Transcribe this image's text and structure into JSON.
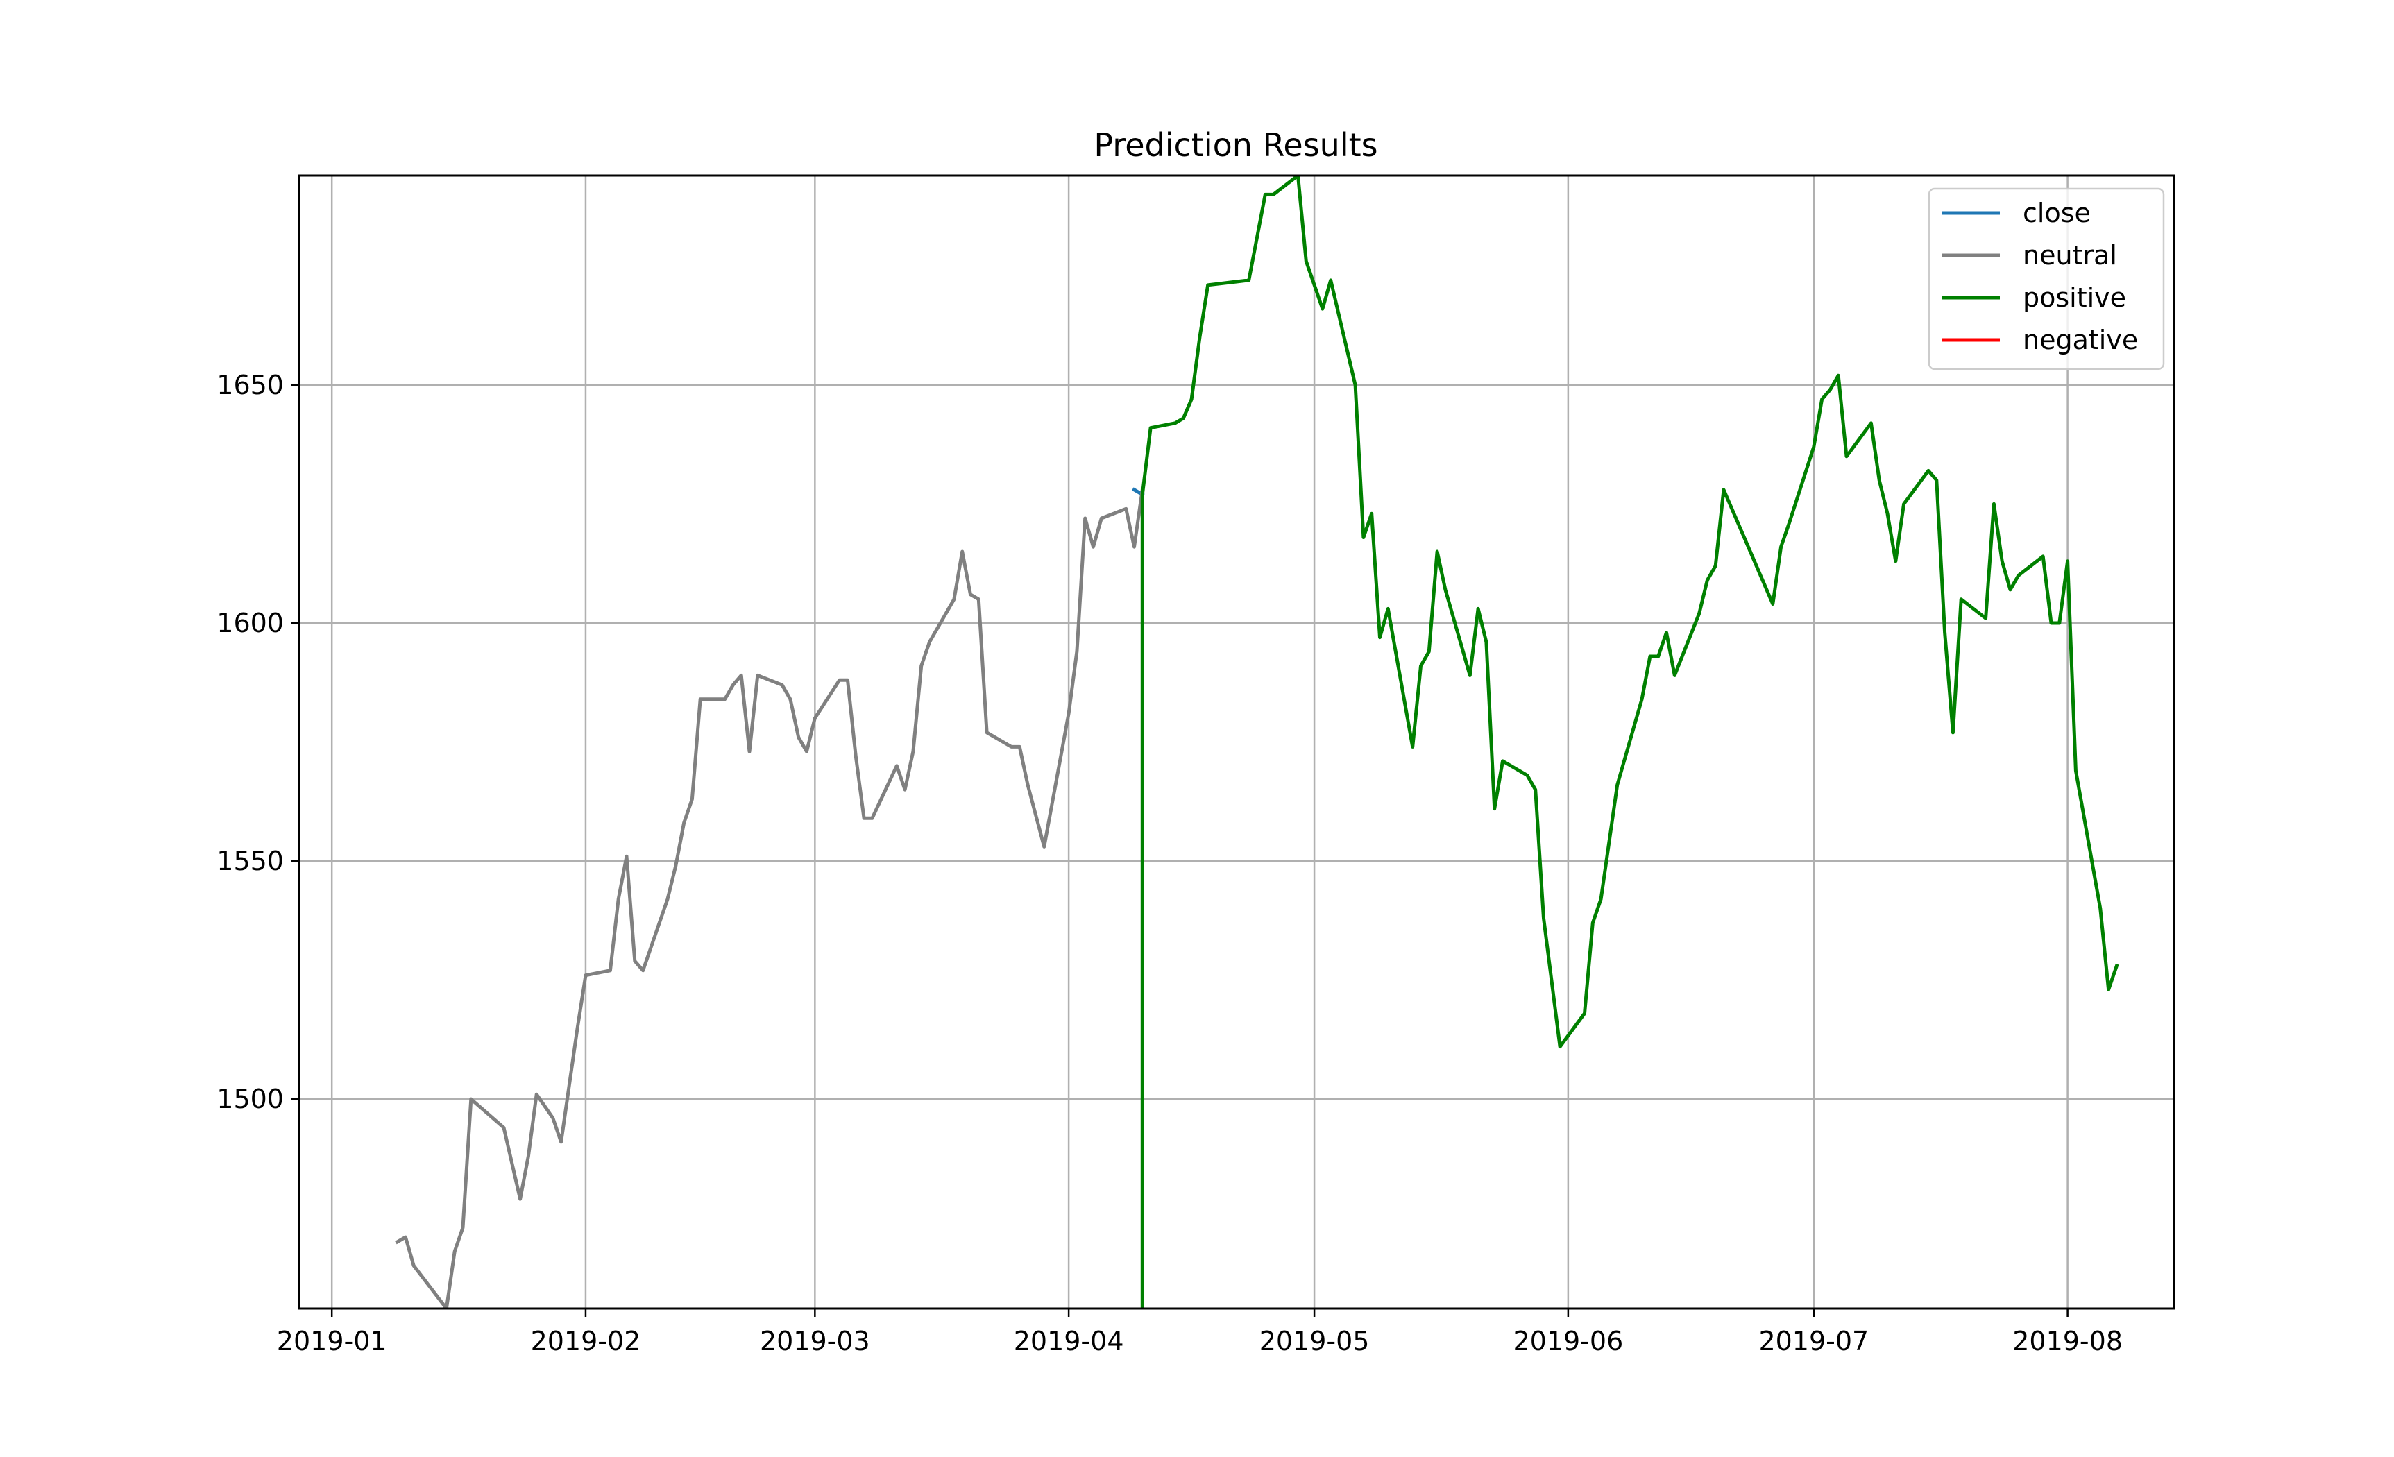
{
  "chart_data": {
    "type": "line",
    "title": "Prediction Results",
    "xlabel": "",
    "ylabel": "",
    "x_axis_type": "date",
    "xlim": [
      "2018-12-28",
      "2019-08-14"
    ],
    "ylim": [
      1456,
      1694
    ],
    "x_ticks": [
      "2019-01-01",
      "2019-02-01",
      "2019-03-01",
      "2019-04-01",
      "2019-05-01",
      "2019-06-01",
      "2019-07-01",
      "2019-08-01"
    ],
    "x_tick_labels": [
      "2019-01",
      "2019-02",
      "2019-03",
      "2019-04",
      "2019-05",
      "2019-06",
      "2019-07",
      "2019-08"
    ],
    "y_ticks": [
      1500,
      1550,
      1600,
      1650
    ],
    "y_tick_labels": [
      "1500",
      "1550",
      "1600",
      "1650"
    ],
    "grid": true,
    "legend_position": "top-right",
    "series": [
      {
        "name": "close",
        "color": "#1f77b4",
        "points": [
          [
            "2019-04-09",
            1628
          ],
          [
            "2019-04-10",
            1627
          ]
        ]
      },
      {
        "name": "neutral",
        "color": "#808080",
        "points": [
          [
            "2019-01-09",
            1470
          ],
          [
            "2019-01-10",
            1471
          ],
          [
            "2019-01-11",
            1465
          ],
          [
            "2019-01-15",
            1456
          ],
          [
            "2019-01-16",
            1468
          ],
          [
            "2019-01-17",
            1473
          ],
          [
            "2019-01-18",
            1500
          ],
          [
            "2019-01-22",
            1494
          ],
          [
            "2019-01-24",
            1479
          ],
          [
            "2019-01-25",
            1488
          ],
          [
            "2019-01-26",
            1501
          ],
          [
            "2019-01-28",
            1496
          ],
          [
            "2019-01-29",
            1491
          ],
          [
            "2019-01-30",
            1503
          ],
          [
            "2019-01-31",
            1515
          ],
          [
            "2019-02-01",
            1526
          ],
          [
            "2019-02-04",
            1527
          ],
          [
            "2019-02-05",
            1542
          ],
          [
            "2019-02-06",
            1551
          ],
          [
            "2019-02-07",
            1529
          ],
          [
            "2019-02-08",
            1527
          ],
          [
            "2019-02-11",
            1542
          ],
          [
            "2019-02-12",
            1549
          ],
          [
            "2019-02-13",
            1558
          ],
          [
            "2019-02-14",
            1563
          ],
          [
            "2019-02-15",
            1584
          ],
          [
            "2019-02-18",
            1584
          ],
          [
            "2019-02-19",
            1587
          ],
          [
            "2019-02-20",
            1589
          ],
          [
            "2019-02-21",
            1573
          ],
          [
            "2019-02-22",
            1589
          ],
          [
            "2019-02-25",
            1587
          ],
          [
            "2019-02-26",
            1584
          ],
          [
            "2019-02-27",
            1576
          ],
          [
            "2019-02-28",
            1573
          ],
          [
            "2019-03-01",
            1580
          ],
          [
            "2019-03-04",
            1588
          ],
          [
            "2019-03-05",
            1588
          ],
          [
            "2019-03-06",
            1572
          ],
          [
            "2019-03-07",
            1559
          ],
          [
            "2019-03-08",
            1559
          ],
          [
            "2019-03-11",
            1570
          ],
          [
            "2019-03-12",
            1565
          ],
          [
            "2019-03-13",
            1573
          ],
          [
            "2019-03-14",
            1591
          ],
          [
            "2019-03-15",
            1596
          ],
          [
            "2019-03-18",
            1605
          ],
          [
            "2019-03-19",
            1615
          ],
          [
            "2019-03-20",
            1606
          ],
          [
            "2019-03-21",
            1605
          ],
          [
            "2019-03-22",
            1577
          ],
          [
            "2019-03-25",
            1574
          ],
          [
            "2019-03-26",
            1574
          ],
          [
            "2019-03-27",
            1566
          ],
          [
            "2019-03-29",
            1553
          ],
          [
            "2019-04-01",
            1581
          ],
          [
            "2019-04-02",
            1594
          ],
          [
            "2019-04-03",
            1622
          ],
          [
            "2019-04-04",
            1616
          ],
          [
            "2019-04-05",
            1622
          ],
          [
            "2019-04-08",
            1624
          ],
          [
            "2019-04-09",
            1616
          ],
          [
            "2019-04-10",
            1628
          ]
        ]
      },
      {
        "name": "positive",
        "color": "#008000",
        "points": [
          [
            "2019-04-10",
            1456
          ],
          [
            "2019-04-10",
            1627
          ],
          [
            "2019-04-11",
            1641
          ],
          [
            "2019-04-14",
            1642
          ],
          [
            "2019-04-15",
            1643
          ],
          [
            "2019-04-16",
            1647
          ],
          [
            "2019-04-17",
            1660
          ],
          [
            "2019-04-18",
            1671
          ],
          [
            "2019-04-23",
            1672
          ],
          [
            "2019-04-25",
            1690
          ],
          [
            "2019-04-26",
            1690
          ],
          [
            "2019-04-29",
            1694
          ],
          [
            "2019-04-30",
            1676
          ],
          [
            "2019-05-02",
            1666
          ],
          [
            "2019-05-03",
            1672
          ],
          [
            "2019-05-06",
            1650
          ],
          [
            "2019-05-07",
            1618
          ],
          [
            "2019-05-08",
            1623
          ],
          [
            "2019-05-09",
            1597
          ],
          [
            "2019-05-10",
            1603
          ],
          [
            "2019-05-13",
            1574
          ],
          [
            "2019-05-14",
            1591
          ],
          [
            "2019-05-15",
            1594
          ],
          [
            "2019-05-16",
            1615
          ],
          [
            "2019-05-17",
            1607
          ],
          [
            "2019-05-20",
            1589
          ],
          [
            "2019-05-21",
            1603
          ],
          [
            "2019-05-22",
            1596
          ],
          [
            "2019-05-23",
            1561
          ],
          [
            "2019-05-24",
            1571
          ],
          [
            "2019-05-27",
            1568
          ],
          [
            "2019-05-28",
            1565
          ],
          [
            "2019-05-29",
            1538
          ],
          [
            "2019-05-31",
            1511
          ],
          [
            "2019-06-03",
            1518
          ],
          [
            "2019-06-04",
            1537
          ],
          [
            "2019-06-05",
            1542
          ],
          [
            "2019-06-07",
            1566
          ],
          [
            "2019-06-10",
            1584
          ],
          [
            "2019-06-11",
            1593
          ],
          [
            "2019-06-12",
            1593
          ],
          [
            "2019-06-13",
            1598
          ],
          [
            "2019-06-14",
            1589
          ],
          [
            "2019-06-17",
            1602
          ],
          [
            "2019-06-18",
            1609
          ],
          [
            "2019-06-19",
            1612
          ],
          [
            "2019-06-20",
            1628
          ],
          [
            "2019-06-24",
            1612
          ],
          [
            "2019-06-25",
            1608
          ],
          [
            "2019-06-26",
            1604
          ],
          [
            "2019-06-27",
            1616
          ],
          [
            "2019-06-28",
            1621
          ],
          [
            "2019-07-01",
            1637
          ],
          [
            "2019-07-02",
            1647
          ],
          [
            "2019-07-03",
            1649
          ],
          [
            "2019-07-04",
            1652
          ],
          [
            "2019-07-05",
            1635
          ],
          [
            "2019-07-08",
            1642
          ],
          [
            "2019-07-09",
            1630
          ],
          [
            "2019-07-10",
            1623
          ],
          [
            "2019-07-11",
            1613
          ],
          [
            "2019-07-12",
            1625
          ],
          [
            "2019-07-15",
            1632
          ],
          [
            "2019-07-16",
            1630
          ],
          [
            "2019-07-17",
            1598
          ],
          [
            "2019-07-18",
            1577
          ],
          [
            "2019-07-19",
            1605
          ],
          [
            "2019-07-22",
            1601
          ],
          [
            "2019-07-23",
            1625
          ],
          [
            "2019-07-24",
            1613
          ],
          [
            "2019-07-25",
            1607
          ],
          [
            "2019-07-26",
            1610
          ],
          [
            "2019-07-29",
            1614
          ],
          [
            "2019-07-30",
            1600
          ],
          [
            "2019-07-31",
            1600
          ],
          [
            "2019-08-01",
            1613
          ],
          [
            "2019-08-02",
            1569
          ],
          [
            "2019-08-05",
            1540
          ],
          [
            "2019-08-06",
            1523
          ],
          [
            "2019-08-07",
            1528
          ]
        ]
      },
      {
        "name": "negative",
        "color": "#ff0000",
        "points": []
      }
    ]
  }
}
